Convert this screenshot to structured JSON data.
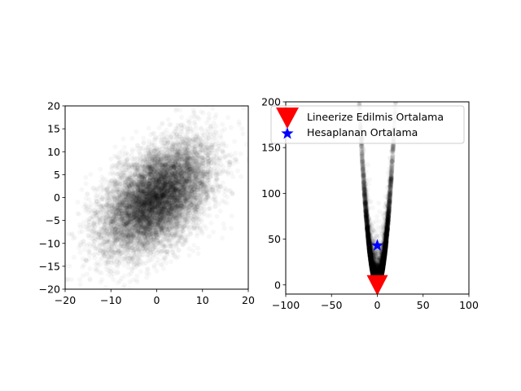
{
  "chart_data": [
    {
      "type": "scatter",
      "title": "",
      "xlabel": "",
      "ylabel": "",
      "xlim": [
        -20,
        20
      ],
      "ylim": [
        -20,
        20
      ],
      "xticks": [
        "−20",
        "−10",
        "0",
        "10",
        "20"
      ],
      "yticks": [
        "−20",
        "−15",
        "−10",
        "−5",
        "0",
        "5",
        "10",
        "15",
        "20"
      ],
      "xtick_values": [
        -20,
        -10,
        0,
        10,
        20
      ],
      "ytick_values": [
        -20,
        -15,
        -10,
        -5,
        0,
        5,
        10,
        15,
        20
      ],
      "grid": false,
      "distribution": {
        "kind": "bivariate normal",
        "mean": [
          0,
          0
        ],
        "std_x": 6,
        "std_y": 6,
        "correlation": 0.5,
        "n_points": 10000,
        "marker_alpha": 0.03,
        "color": "#000000"
      }
    },
    {
      "type": "scatter",
      "title": "",
      "xlabel": "",
      "ylabel": "",
      "xlim": [
        -100,
        100
      ],
      "ylim": [
        -10,
        200
      ],
      "xticks": [
        "−100",
        "−50",
        "0",
        "50",
        "100"
      ],
      "yticks": [
        "0",
        "50",
        "100",
        "150",
        "200"
      ],
      "xtick_values": [
        -100,
        -50,
        0,
        50,
        100
      ],
      "ytick_values": [
        0,
        50,
        100,
        150,
        200
      ],
      "grid": false,
      "legend_position": "top-right",
      "distribution": {
        "kind": "transformed cloud (y ≈ x² + z²)",
        "n_points": 10000,
        "marker_alpha": 0.03,
        "color": "#000000"
      },
      "series": [
        {
          "name": "Lineerize Edilmis Ortalama",
          "marker": "triangle-down",
          "color": "#ff0000",
          "x": [
            0
          ],
          "y": [
            0
          ]
        },
        {
          "name": "Hesaplanan Ortalama",
          "marker": "star",
          "color": "#0000ff",
          "x": [
            0
          ],
          "y": [
            43
          ]
        }
      ]
    }
  ]
}
